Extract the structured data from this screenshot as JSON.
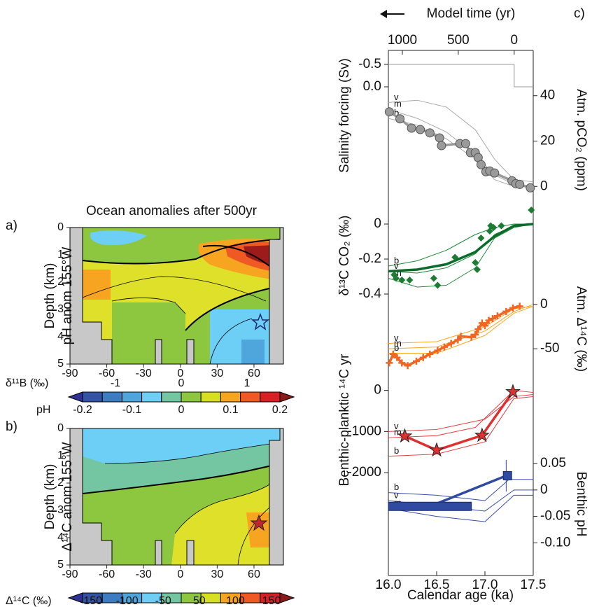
{
  "title": "Ocean anomalies after 500yr",
  "chart_data": [
    {
      "type": "contour",
      "label": "a)",
      "ylabel": "Depth (km)",
      "annotation": "pH anom 155°W",
      "xlim": [
        -90,
        84
      ],
      "ylim": [
        0,
        5
      ],
      "y_inverted": true,
      "xticks": [
        -90,
        -60,
        -30,
        0,
        30,
        60
      ],
      "yticks": [
        0,
        1,
        2,
        3,
        4,
        5
      ],
      "colorbar_colors": [
        "#2e3192",
        "#3553a4",
        "#3e7cc1",
        "#4ea6dc",
        "#6dcff6",
        "#73c6a1",
        "#8dc63f",
        "#d7df23",
        "#f7a521",
        "#ef5a24",
        "#d71f26",
        "#8b1a1a"
      ],
      "colorbars": [
        {
          "label": "δ¹¹B (‰)",
          "lim": [
            -1.5,
            1.5
          ],
          "ticks": [
            -1,
            0,
            1
          ]
        },
        {
          "label": "pH",
          "lim": [
            -0.2,
            0.2
          ],
          "ticks": [
            -0.2,
            -0.1,
            0,
            0.1,
            0.2
          ]
        }
      ]
    },
    {
      "type": "contour",
      "label": "b)",
      "ylabel": "Depth (km)",
      "annotation": "Δ¹⁴C anom 155°W",
      "xlim": [
        -90,
        84
      ],
      "ylim": [
        0,
        5
      ],
      "y_inverted": true,
      "xticks": [
        -90,
        -60,
        -30,
        0,
        30,
        60
      ],
      "yticks": [
        0,
        1,
        2,
        3,
        4,
        5
      ],
      "colorbar_colors": [
        "#2e3192",
        "#3553a4",
        "#3e7cc1",
        "#4ea6dc",
        "#6dcff6",
        "#73c6a1",
        "#8dc63f",
        "#d7df23",
        "#f7a521",
        "#ef5a24",
        "#d71f26",
        "#8b1a1a"
      ],
      "colorbars": [
        {
          "label": "Δ¹⁴C (‰)",
          "ticks": [
            -150,
            -100,
            -50,
            50,
            100,
            150
          ]
        }
      ]
    },
    {
      "type": "multi-line",
      "label": "c)",
      "xlabel": "Calendar age (ka)",
      "xlim": [
        16,
        17.5
      ],
      "xticks": [
        {
          "value": 16,
          "label": "16.0"
        },
        16.5,
        {
          "value": 17,
          "label": "17.0"
        },
        17.5
      ],
      "top_axis": {
        "label": "Model time (yr)",
        "lim": [
          1125,
          -170
        ],
        "ticks": [
          1000,
          500,
          0
        ]
      },
      "panels": [
        {
          "ylabel": "Salinity forcing (Sv)",
          "side": "left",
          "ylim": [
            -0.75,
            0.25
          ],
          "y_inverted": true,
          "yticks": [
            -0.5,
            {
              "value": 0,
              "label": "0.0"
            }
          ],
          "series": [
            {
              "color": "#999999",
              "xaxis": "top",
              "style": "thin",
              "x": [
                1125,
                0,
                0,
                -170
              ],
              "values": [
                -0.5,
                -0.5,
                0,
                0
              ]
            }
          ]
        },
        {
          "ylabel": "Atm. pCO₂ (ppm)",
          "side": "right",
          "ylim": [
            -3,
            43
          ],
          "yticks": [
            0,
            20,
            40
          ],
          "series": [
            {
              "name": "v",
              "color": "#aaaaaa",
              "style": "thin",
              "x": [
                16.0,
                16.3,
                16.6,
                16.9,
                17.1,
                17.3,
                17.5
              ],
              "values": [
                37,
                38,
                35,
                25,
                12,
                3,
                2
              ]
            },
            {
              "name": "m",
              "color": "#aaaaaa",
              "style": "thin",
              "x": [
                16.0,
                16.3,
                16.6,
                16.9,
                17.1,
                17.3,
                17.5
              ],
              "values": [
                34,
                30,
                24,
                14,
                5,
                1,
                0
              ]
            },
            {
              "name": "b",
              "color": "#aaaaaa",
              "style": "thin",
              "x": [
                16.0,
                16.3,
                16.6,
                16.9,
                17.1,
                17.3,
                17.5
              ],
              "values": [
                30,
                27,
                21,
                12,
                3,
                0,
                0
              ]
            },
            {
              "color": "#999999",
              "style": "thick",
              "marker": "circle",
              "x": [
                16.01,
                16.12,
                16.24,
                16.33,
                16.43,
                16.53,
                16.55,
                16.74,
                16.8,
                16.85,
                16.9,
                16.93,
                16.96,
                17.01,
                17.05,
                17.1,
                17.28,
                17.32,
                17.36,
                17.47
              ],
              "values": [
                32.9,
                29.8,
                25.7,
                25.1,
                23.6,
                21.4,
                18,
                18.9,
                18.9,
                14.9,
                14.9,
                12.7,
                9.6,
                6.5,
                6.8,
                5.9,
                2.5,
                1.2,
                0.9,
                -0.6
              ]
            }
          ]
        },
        {
          "ylabel": "δ¹³C CO₂ (‰)",
          "side": "left",
          "ylim": [
            -0.42,
            0.1
          ],
          "yticks": [
            0,
            -0.2,
            -0.4
          ],
          "series": [
            {
              "name": "b",
              "color": "#1e8a3c",
              "style": "thin",
              "x": [
                16.0,
                16.3,
                16.6,
                16.9,
                17.1,
                17.3,
                17.5
              ],
              "values": [
                -0.24,
                -0.21,
                -0.15,
                -0.06,
                -0.02,
                0,
                0
              ]
            },
            {
              "name": "v",
              "color": "#1e8a3c",
              "style": "thin",
              "x": [
                16.0,
                16.3,
                16.6,
                16.9,
                17.1,
                17.3,
                17.5
              ],
              "values": [
                -0.27,
                -0.28,
                -0.25,
                -0.17,
                -0.06,
                -0.01,
                0
              ]
            },
            {
              "name": "m",
              "color": "#1e8a3c",
              "style": "thin",
              "x": [
                16.0,
                16.3,
                16.6,
                16.9,
                17.1,
                17.3,
                17.5
              ],
              "values": [
                -0.31,
                -0.36,
                -0.35,
                -0.25,
                -0.08,
                -0.02,
                0
              ]
            },
            {
              "color": "#0b6b2a",
              "style": "thick",
              "x": [
                16.0,
                16.3,
                16.6,
                16.9,
                17.1,
                17.3,
                17.5
              ],
              "values": [
                -0.27,
                -0.26,
                -0.23,
                -0.16,
                -0.07,
                -0.01,
                0
              ]
            },
            {
              "color": "#1e7b34",
              "style": "none",
              "marker": "diamond",
              "x": [
                16.06,
                16.08,
                16.14,
                16.22,
                16.47,
                16.51,
                16.69,
                16.9,
                16.92,
                16.96,
                17.05,
                17.06,
                17.09,
                17.17,
                17.48
              ],
              "values": [
                -0.29,
                -0.31,
                -0.32,
                -0.32,
                -0.31,
                -0.35,
                -0.19,
                -0.22,
                -0.26,
                -0.08,
                -0.04,
                -0.01,
                -0.02,
                -0.01,
                0.08
              ]
            }
          ]
        },
        {
          "ylabel": "Atm. Δ¹⁴C (‰)",
          "side": "right",
          "ylim": [
            -72,
            3
          ],
          "yticks": [
            0,
            -50
          ],
          "series": [
            {
              "name": "v",
              "color": "#f5a623",
              "style": "thin",
              "x": [
                16.0,
                16.5,
                17.0,
                17.3,
                17.5
              ],
              "values": [
                -44,
                -42,
                -25,
                -5,
                -2
              ]
            },
            {
              "name": "m",
              "color": "#f5a623",
              "style": "thin",
              "x": [
                16.0,
                16.5,
                17.0,
                17.3,
                17.5
              ],
              "values": [
                -50,
                -48,
                -30,
                -8,
                0
              ]
            },
            {
              "name": "b",
              "color": "#f5a623",
              "style": "thin",
              "x": [
                16.0,
                16.5,
                17.0,
                17.3,
                17.5
              ],
              "values": [
                -55,
                -55,
                -35,
                -10,
                -2
              ]
            },
            {
              "color": "#f26522",
              "style": "thick",
              "marker": "cross",
              "x": [
                16.01,
                16.05,
                16.09,
                16.14,
                16.2,
                16.29,
                16.36,
                16.43,
                16.51,
                16.58,
                16.65,
                16.72,
                16.75,
                16.86,
                16.9,
                16.93,
                16.97,
                17.0,
                17.04,
                17.08,
                17.13,
                17.22,
                17.29,
                17.36
              ],
              "values": [
                -66,
                -56,
                -60,
                -66,
                -69,
                -64,
                -60,
                -56,
                -52,
                -48,
                -44,
                -40,
                -36,
                -37,
                -34,
                -28,
                -21,
                -24,
                -18,
                -16,
                -13,
                -8,
                -4,
                -2
              ]
            }
          ]
        },
        {
          "ylabel": "Benthic-planktic ¹⁴C yr",
          "side": "left",
          "ylim": [
            -2100,
            300
          ],
          "yticks": [
            0,
            -1000,
            -2000
          ],
          "series": [
            {
              "name": "v",
              "color": "#e8383d",
              "style": "thin",
              "x": [
                16.0,
                16.5,
                17.0,
                17.3,
                17.5
              ],
              "values": [
                -1000,
                -950,
                -700,
                -150,
                -100
              ]
            },
            {
              "name": "m",
              "color": "#e8383d",
              "style": "thin",
              "x": [
                16.0,
                16.5,
                16.9,
                17.3,
                17.5
              ],
              "values": [
                -1150,
                -1100,
                -900,
                0,
                -50
              ]
            },
            {
              "name": "b",
              "color": "#e8383d",
              "style": "thin",
              "x": [
                16.0,
                16.5,
                17.0,
                17.3,
                17.5
              ],
              "values": [
                -1600,
                -1550,
                -1250,
                -200,
                -150
              ]
            },
            {
              "color": "#e02f2f",
              "style": "thick",
              "marker": "star",
              "x": [
                16.17,
                16.5,
                16.97,
                17.29
              ],
              "values": [
                -1111,
                -1453,
                -1094,
                -34
              ]
            }
          ]
        },
        {
          "ylabel": "Benthic pH",
          "side": "right",
          "ylim": [
            -0.13,
            0.07
          ],
          "yticks": [
            0.05,
            0,
            -0.05,
            {
              "value": -0.1,
              "label": "-0.10"
            }
          ],
          "series": [
            {
              "name": "b",
              "color": "#3a4fa8",
              "style": "thin",
              "x": [
                16.0,
                16.5,
                17.0,
                17.25,
                17.5
              ],
              "values": [
                -0.005,
                -0.01,
                -0.02,
                0.02,
                0.02
              ]
            },
            {
              "name": "v",
              "color": "#3a4fa8",
              "style": "thin",
              "x": [
                16.0,
                16.5,
                17.0,
                17.3,
                17.5
              ],
              "values": [
                -0.02,
                -0.03,
                -0.04,
                0,
                0
              ]
            },
            {
              "name": "m",
              "color": "#3a4fa8",
              "style": "thin",
              "x": [
                16.0,
                16.5,
                17.0,
                17.3,
                17.5
              ],
              "values": [
                -0.035,
                -0.05,
                -0.06,
                -0.01,
                -0.01
              ]
            },
            {
              "color": "#2f4aa0",
              "style": "thick",
              "marker": "box",
              "x": [
                16.43,
                17.22
              ],
              "values": [
                -0.031,
                0.027
              ],
              "xerr": [
                0.43,
                0.03
              ],
              "yerr": [
                null,
                0.03
              ]
            }
          ]
        }
      ]
    }
  ]
}
